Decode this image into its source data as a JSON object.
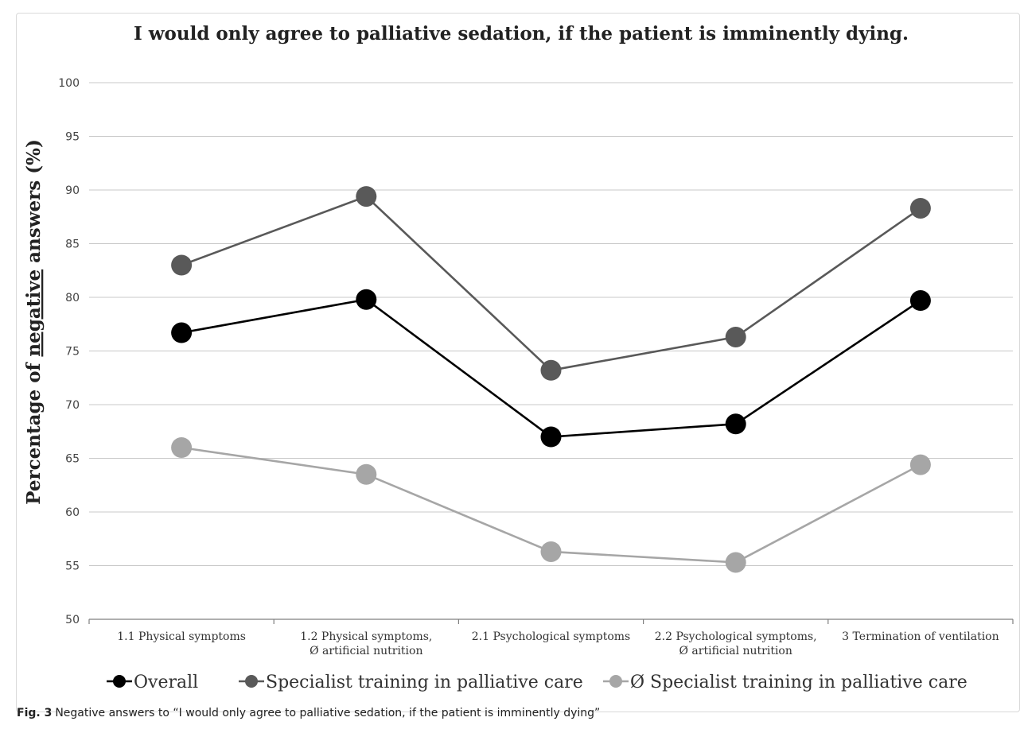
{
  "chart_data": {
    "type": "line",
    "title": "I would only agree to palliative sedation, if the patient is imminently dying.",
    "ylabel_prefix": "Percentage of ",
    "ylabel_underlined": "negative",
    "ylabel_suffix": " answers (%)",
    "ylim": [
      50,
      100
    ],
    "yticks": [
      "50",
      "55",
      "60",
      "65",
      "70",
      "75",
      "80",
      "85",
      "90",
      "95",
      "100"
    ],
    "grid": true,
    "legend_position": "bottom",
    "categories": [
      [
        "1.1 Physical symptoms"
      ],
      [
        "1.2 Physical symptoms,",
        "Ø artificial nutrition"
      ],
      [
        "2.1 Psychological symptoms"
      ],
      [
        "2.2 Psychological symptoms,",
        "Ø artificial nutrition"
      ],
      [
        "3 Termination of ventilation"
      ]
    ],
    "series": [
      {
        "name": "Overall",
        "color": "#000000",
        "values": [
          76.7,
          79.8,
          67.0,
          68.2,
          79.7
        ]
      },
      {
        "name": "Specialist training in palliative care",
        "color": "#595959",
        "values": [
          83.0,
          89.4,
          73.2,
          76.3,
          88.3
        ]
      },
      {
        "name": "Ø Specialist training in palliative care",
        "color": "#a6a6a6",
        "values": [
          66.0,
          63.5,
          56.3,
          55.3,
          64.4
        ]
      }
    ]
  },
  "caption": {
    "label": "Fig. 3",
    "text": "Negative answers to “I would only agree to palliative sedation, if the patient is imminently dying”"
  }
}
